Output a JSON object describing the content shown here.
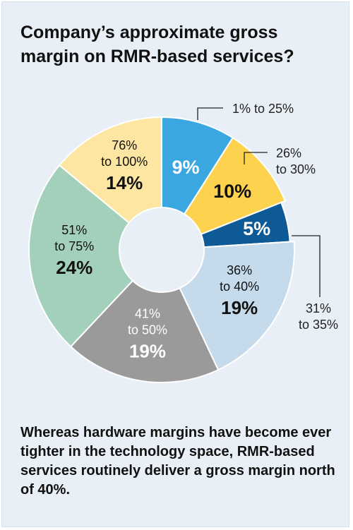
{
  "title": "Company’s approximate gross margin on RMR-based services?",
  "footer": "Whereas hardware margins have become ever tighter in the technology space, RMR-based services routinely deliver a gross margin north of 40%.",
  "chart_data": {
    "type": "pie",
    "donut": true,
    "title": "Company’s approximate gross margin on RMR-based services?",
    "slices": [
      {
        "label": "1% to 25%",
        "value": 9,
        "value_label": "9%",
        "color": "#3aa7e1"
      },
      {
        "label": "26% to 30%",
        "value": 10,
        "value_label": "10%",
        "color": "#fdd24e"
      },
      {
        "label": "31% to 35%",
        "value": 5,
        "value_label": "5%",
        "color": "#0e5a96"
      },
      {
        "label": "36% to 40%",
        "value": 19,
        "value_label": "19%",
        "color": "#c5dbec"
      },
      {
        "label": "41% to 50%",
        "value": 19,
        "value_label": "19%",
        "color": "#9a9a9a"
      },
      {
        "label": "51% to 75%",
        "value": 24,
        "value_label": "24%",
        "color": "#a3d0bb"
      },
      {
        "label": "76% to 100%",
        "value": 14,
        "value_label": "14%",
        "color": "#fde6a1"
      }
    ],
    "label_lines": {
      "0": [
        "1% to 25%"
      ],
      "1": [
        "26%",
        "to 30%"
      ],
      "2": [
        "31%",
        "to 35%"
      ],
      "3": [
        "36%",
        "to 40%"
      ],
      "4": [
        "41%",
        "to 50%"
      ],
      "5": [
        "51%",
        "to 75%"
      ],
      "6": [
        "76%",
        "to 100%"
      ]
    }
  }
}
